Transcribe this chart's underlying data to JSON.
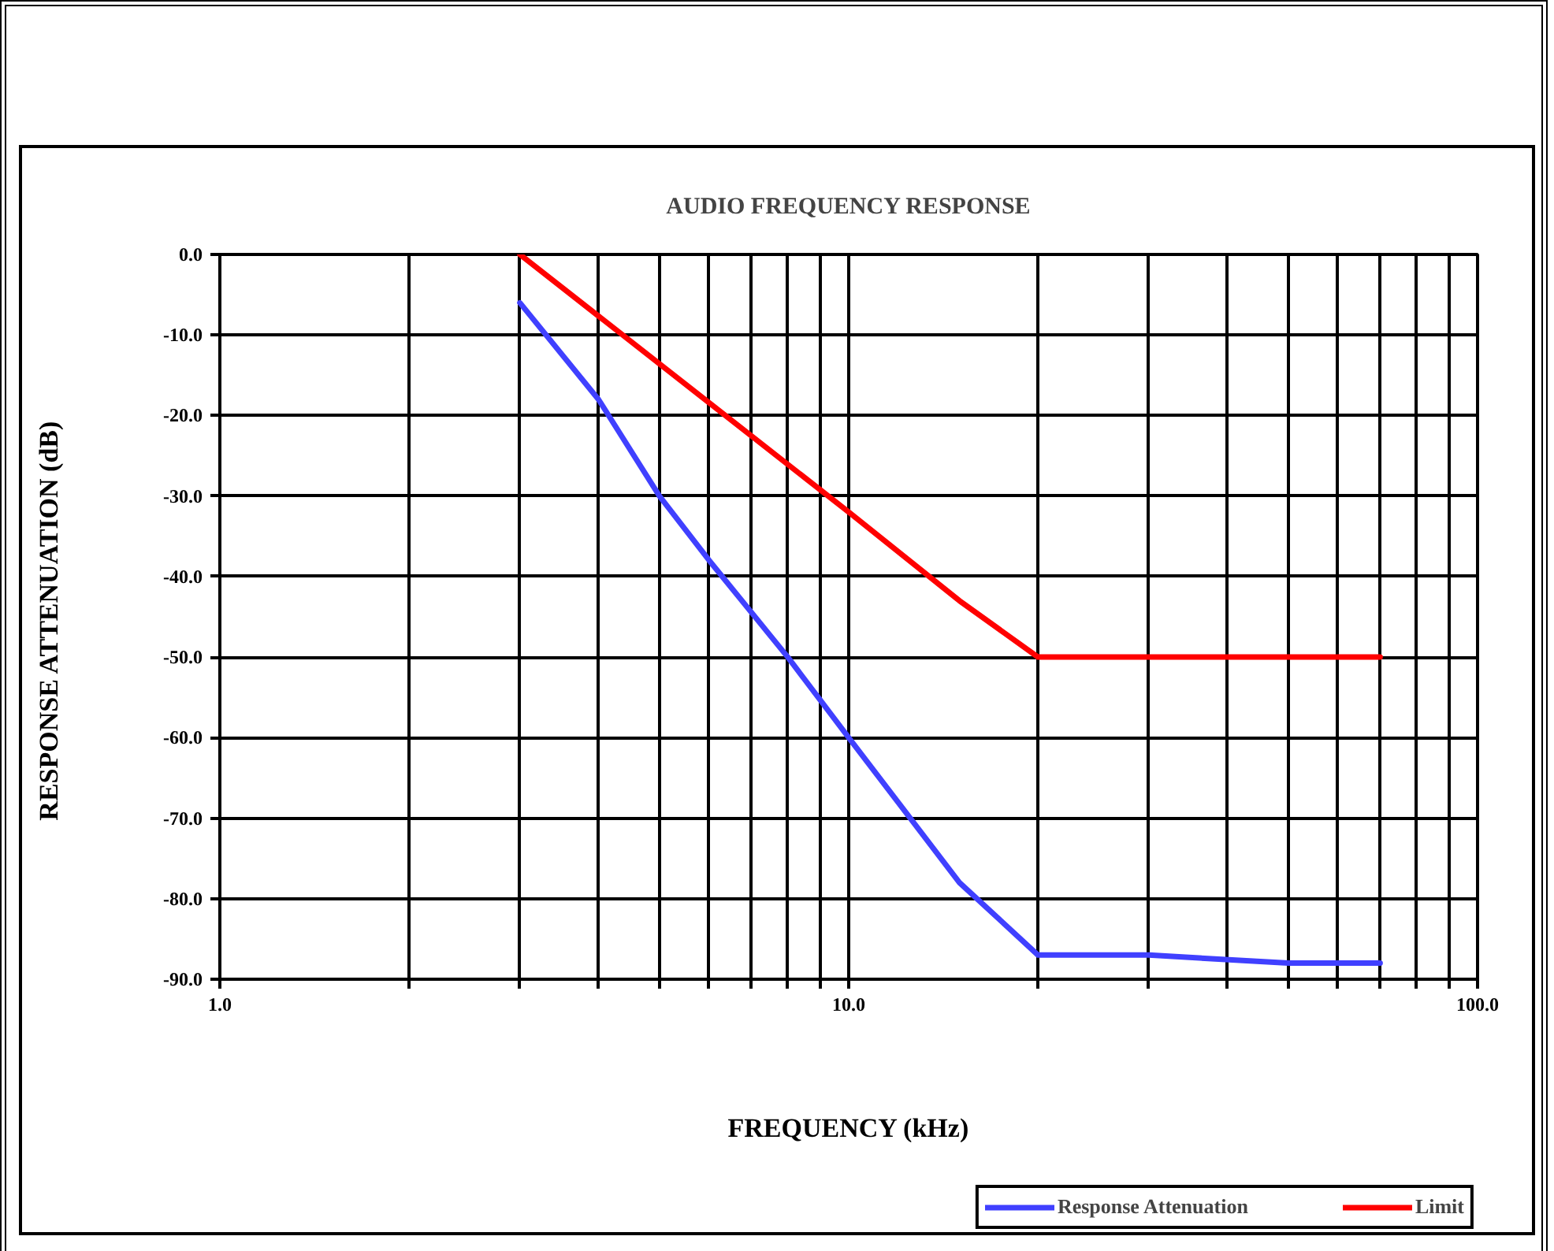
{
  "chart_data": {
    "type": "line",
    "title": "AUDIO FREQUENCY RESPONSE",
    "xlabel": "FREQUENCY (kHz)",
    "ylabel": "RESPONSE ATTENUATION  (dB)",
    "log": "x",
    "xlim": [
      1,
      100
    ],
    "ylim": [
      -90,
      0
    ],
    "xticks": [
      {
        "value": 1,
        "label": "1.0"
      },
      {
        "value": 2,
        "label": null
      },
      {
        "value": 3,
        "label": null
      },
      {
        "value": 4,
        "label": null
      },
      {
        "value": 5,
        "label": null
      },
      {
        "value": 6,
        "label": null
      },
      {
        "value": 7,
        "label": null
      },
      {
        "value": 8,
        "label": null
      },
      {
        "value": 9,
        "label": null
      },
      {
        "value": 10,
        "label": "10.0"
      },
      {
        "value": 20,
        "label": null
      },
      {
        "value": 30,
        "label": null
      },
      {
        "value": 40,
        "label": null
      },
      {
        "value": 50,
        "label": null
      },
      {
        "value": 60,
        "label": null
      },
      {
        "value": 70,
        "label": null
      },
      {
        "value": 80,
        "label": null
      },
      {
        "value": 90,
        "label": null
      },
      {
        "value": 100,
        "label": "100.0"
      }
    ],
    "yticks": [
      {
        "value": 0,
        "label": "0.0"
      },
      {
        "value": -10,
        "label": "-10.0"
      },
      {
        "value": -20,
        "label": "-20.0"
      },
      {
        "value": -30,
        "label": "-30.0"
      },
      {
        "value": -40,
        "label": "-40.0"
      },
      {
        "value": -50,
        "label": "-50.0"
      },
      {
        "value": -60,
        "label": "-60.0"
      },
      {
        "value": -70,
        "label": "-70.0"
      },
      {
        "value": -80,
        "label": "-80.0"
      },
      {
        "value": -90,
        "label": "-90.0"
      }
    ],
    "grid": true,
    "legend": "bottom right",
    "series": [
      {
        "name": "Response Attenuation",
        "color": "#4040ff",
        "x": [
          3,
          4,
          5,
          6,
          8,
          10,
          15,
          20,
          30,
          50,
          70
        ],
        "values": [
          -6,
          -18,
          -30,
          -38,
          -50,
          -60,
          -78,
          -87,
          -87,
          -88,
          -88
        ]
      },
      {
        "name": "Limit",
        "color": "#ff0000",
        "x": [
          3,
          10,
          15,
          20,
          70
        ],
        "values": [
          0,
          -32,
          -43,
          -50,
          -50
        ]
      }
    ]
  }
}
